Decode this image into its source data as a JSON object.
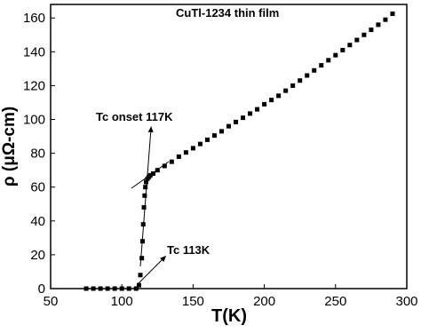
{
  "chart_data": {
    "type": "scatter",
    "annotations": [
      "CuTl-1234 thin film",
      "Tc onset 117K",
      "Tc 113K"
    ],
    "xlabel": "T(K)",
    "ylabel": "ρ (μΩ-cm)",
    "x": [
      75,
      80,
      85,
      90,
      95,
      100,
      105,
      110,
      112,
      113,
      114,
      114.5,
      115,
      115.5,
      116,
      116.5,
      117,
      118,
      119,
      120,
      122,
      125,
      130,
      135,
      140,
      145,
      150,
      155,
      160,
      165,
      170,
      175,
      180,
      185,
      190,
      195,
      200,
      205,
      210,
      215,
      220,
      225,
      230,
      235,
      240,
      245,
      250,
      255,
      260,
      265,
      270,
      275,
      280,
      285,
      290
    ],
    "values": [
      0,
      0,
      0,
      0,
      0,
      0,
      0,
      0,
      2,
      8,
      18,
      28,
      38,
      48,
      55,
      60,
      63,
      65,
      66,
      67,
      68,
      70,
      72.5,
      75,
      78,
      80.5,
      83,
      85.5,
      88,
      90.5,
      93,
      96,
      98.5,
      101,
      103.5,
      106,
      109,
      111.5,
      114,
      117,
      120,
      123,
      126,
      129,
      132,
      135,
      138,
      141,
      144,
      147,
      150,
      153,
      156,
      159,
      162.5
    ],
    "color": "#000000",
    "xlim": [
      50,
      300
    ],
    "xticks": [
      50,
      100,
      150,
      200,
      250,
      300
    ],
    "ylim": [
      0,
      168
    ],
    "yticks": [
      0,
      20,
      40,
      60,
      80,
      100,
      120,
      140,
      160
    ]
  }
}
